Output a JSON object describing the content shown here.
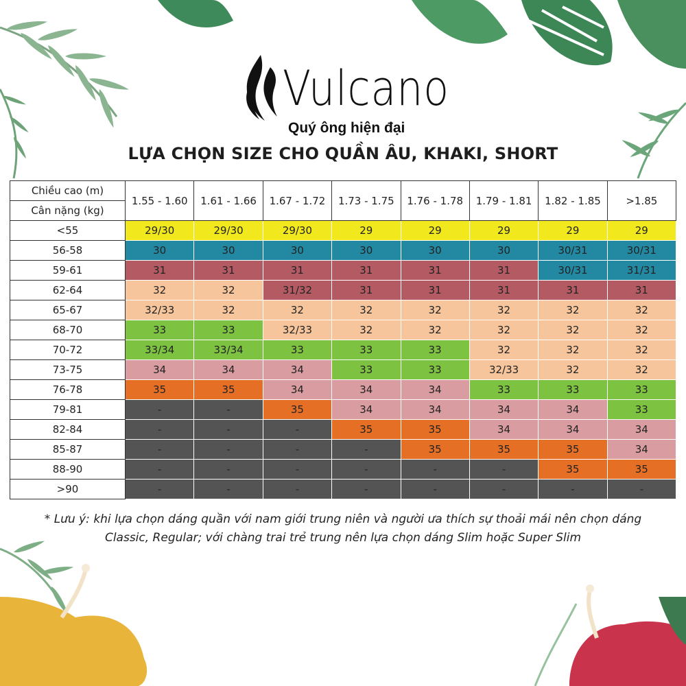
{
  "brand": {
    "name": "Vulcano",
    "tagline": "Quý ông hiện đại"
  },
  "title": "LỰA CHỌN SIZE CHO QUẦN ÂU, KHAKI, SHORT",
  "table": {
    "header_height_label": "Chiều cao (m)",
    "header_weight_label": "Cân nặng (kg)",
    "height_ranges": [
      "1.55 - 1.60",
      "1.61 - 1.66",
      "1.67 - 1.72",
      "1.73 - 1.75",
      "1.76 - 1.78",
      "1.79 - 1.81",
      "1.82 - 1.85",
      ">1.85"
    ],
    "rows": [
      {
        "weight": "<55",
        "sizes": [
          "29/30",
          "29/30",
          "29/30",
          "29",
          "29",
          "29",
          "29",
          "29"
        ],
        "colors": [
          "y",
          "y",
          "y",
          "y",
          "y",
          "y",
          "y",
          "y"
        ]
      },
      {
        "weight": "56-58",
        "sizes": [
          "30",
          "30",
          "30",
          "30",
          "30",
          "30",
          "30/31",
          "30/31"
        ],
        "colors": [
          "t",
          "t",
          "t",
          "t",
          "t",
          "t",
          "t",
          "t"
        ]
      },
      {
        "weight": "59-61",
        "sizes": [
          "31",
          "31",
          "31",
          "31",
          "31",
          "31",
          "30/31",
          "31/31"
        ],
        "colors": [
          "r",
          "r",
          "r",
          "r",
          "r",
          "r",
          "t",
          "t"
        ]
      },
      {
        "weight": "62-64",
        "sizes": [
          "32",
          "32",
          "31/32",
          "31",
          "31",
          "31",
          "31",
          "31"
        ],
        "colors": [
          "p",
          "p",
          "r",
          "r",
          "r",
          "r",
          "r",
          "r"
        ]
      },
      {
        "weight": "65-67",
        "sizes": [
          "32/33",
          "32",
          "32",
          "32",
          "32",
          "32",
          "32",
          "32"
        ],
        "colors": [
          "p",
          "p",
          "p",
          "p",
          "p",
          "p",
          "p",
          "p"
        ]
      },
      {
        "weight": "68-70",
        "sizes": [
          "33",
          "33",
          "32/33",
          "32",
          "32",
          "32",
          "32",
          "32"
        ],
        "colors": [
          "g",
          "g",
          "p",
          "p",
          "p",
          "p",
          "p",
          "p"
        ]
      },
      {
        "weight": "70-72",
        "sizes": [
          "33/34",
          "33/34",
          "33",
          "33",
          "33",
          "32",
          "32",
          "32"
        ],
        "colors": [
          "g",
          "g",
          "g",
          "g",
          "g",
          "p",
          "p",
          "p"
        ]
      },
      {
        "weight": "73-75",
        "sizes": [
          "34",
          "34",
          "34",
          "33",
          "33",
          "32/33",
          "32",
          "32"
        ],
        "colors": [
          "k",
          "k",
          "k",
          "g",
          "g",
          "p",
          "p",
          "p"
        ]
      },
      {
        "weight": "76-78",
        "sizes": [
          "35",
          "35",
          "34",
          "34",
          "34",
          "33",
          "33",
          "33"
        ],
        "colors": [
          "o",
          "o",
          "k",
          "k",
          "k",
          "g",
          "g",
          "g"
        ]
      },
      {
        "weight": "79-81",
        "sizes": [
          "-",
          "-",
          "35",
          "34",
          "34",
          "34",
          "34",
          "33"
        ],
        "colors": [
          "d",
          "d",
          "o",
          "k",
          "k",
          "k",
          "k",
          "g"
        ]
      },
      {
        "weight": "82-84",
        "sizes": [
          "-",
          "-",
          "-",
          "35",
          "35",
          "34",
          "34",
          "34"
        ],
        "colors": [
          "d",
          "d",
          "d",
          "o",
          "o",
          "k",
          "k",
          "k"
        ]
      },
      {
        "weight": "85-87",
        "sizes": [
          "-",
          "-",
          "-",
          "-",
          "35",
          "35",
          "35",
          "34"
        ],
        "colors": [
          "d",
          "d",
          "d",
          "d",
          "o",
          "o",
          "o",
          "k"
        ]
      },
      {
        "weight": "88-90",
        "sizes": [
          "-",
          "-",
          "-",
          "-",
          "-",
          "-",
          "35",
          "35"
        ],
        "colors": [
          "d",
          "d",
          "d",
          "d",
          "d",
          "d",
          "o",
          "o"
        ]
      },
      {
        "weight": ">90",
        "sizes": [
          "-",
          "-",
          "-",
          "-",
          "-",
          "-",
          "-",
          "-"
        ],
        "colors": [
          "d",
          "d",
          "d",
          "d",
          "d",
          "d",
          "d",
          "d"
        ]
      }
    ]
  },
  "note_line1": "* Lưu ý: khi lựa chọn dáng quần với nam giới trung niên và người ưa thích sự thoải mái nên chọn dáng",
  "note_line2": "Classic, Regular; với chàng trai trẻ trung nên lựa chọn dáng Slim hoặc Super Slim",
  "decor_icons": [
    "palm-leaf-icon",
    "monstera-leaf-icon",
    "hibiscus-flower-icon",
    "flame-logo-icon"
  ],
  "colors": {
    "yellow": "#f1e91e",
    "teal": "#2389a2",
    "maroon": "#b35a63",
    "peach": "#f7c59c",
    "green": "#7dc241",
    "pink": "#d99ca0",
    "orange": "#e56f25",
    "dark": "#545454"
  }
}
